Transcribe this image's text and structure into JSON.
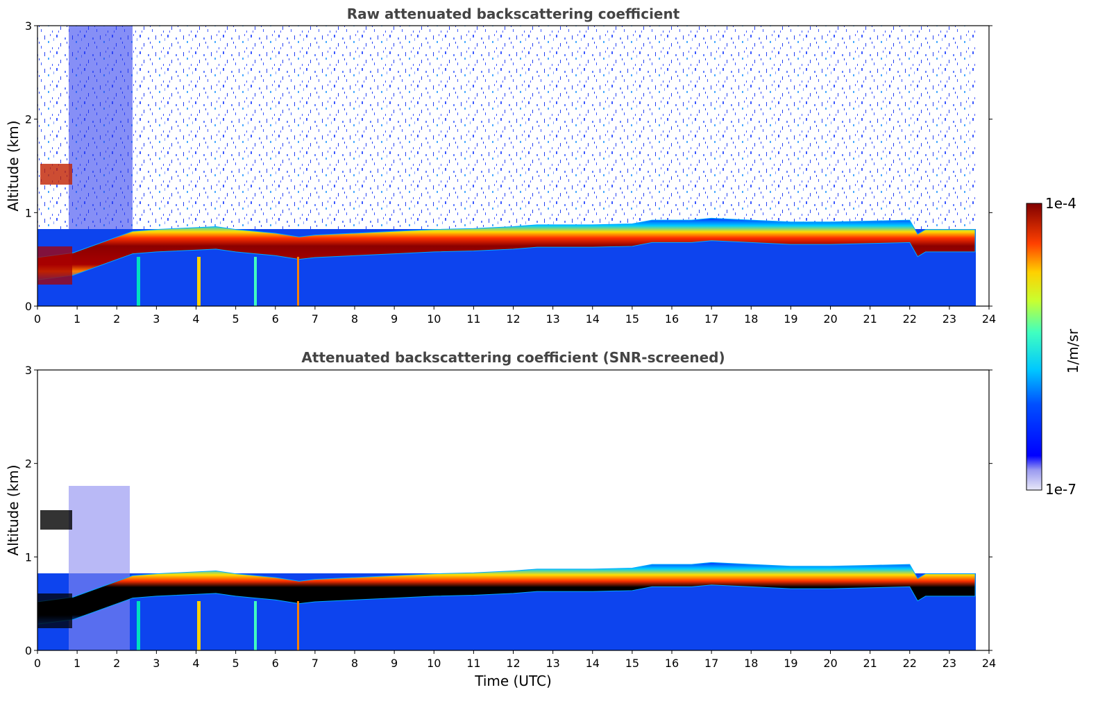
{
  "chart_data": [
    {
      "type": "heatmap",
      "title": "Raw attenuated backscattering coefficient",
      "xlabel": "",
      "ylabel": "Altitude (km)",
      "xlim": [
        0,
        24
      ],
      "ylim": [
        0,
        3
      ],
      "x_ticks": [
        "0",
        "1",
        "2",
        "3",
        "4",
        "5",
        "6",
        "7",
        "8",
        "9",
        "10",
        "11",
        "12",
        "13",
        "14",
        "15",
        "16",
        "17",
        "18",
        "19",
        "20",
        "21",
        "22",
        "23",
        "24"
      ],
      "y_ticks": [
        "0",
        "1",
        "2",
        "3"
      ],
      "data_end_time": 23.65,
      "layer_profile": {
        "time": [
          0.0,
          0.9,
          2.4,
          3.0,
          4.0,
          4.5,
          5.0,
          5.5,
          6.0,
          6.6,
          7.0,
          8.0,
          9.0,
          10.0,
          11.0,
          12.0,
          12.6,
          13.0,
          14.0,
          15.0,
          15.5,
          16.0,
          16.5,
          17.0,
          18.0,
          19.0,
          20.0,
          21.0,
          22.0,
          22.2,
          22.4,
          23.0,
          23.65
        ],
        "altitude_km": [
          0.4,
          0.45,
          0.68,
          0.7,
          0.72,
          0.73,
          0.7,
          0.68,
          0.66,
          0.62,
          0.64,
          0.66,
          0.68,
          0.7,
          0.71,
          0.73,
          0.75,
          0.75,
          0.75,
          0.76,
          0.8,
          0.8,
          0.8,
          0.82,
          0.8,
          0.78,
          0.78,
          0.79,
          0.8,
          0.65,
          0.7,
          0.7,
          0.7
        ]
      },
      "noise_above_layer": true,
      "color_scale": "log",
      "vmin": "1e-7",
      "vmax": "1e-4"
    },
    {
      "type": "heatmap",
      "title": "Attenuated backscattering coefficient (SNR-screened)",
      "xlabel": "Time (UTC)",
      "ylabel": "Altitude (km)",
      "xlim": [
        0,
        24
      ],
      "ylim": [
        0,
        3
      ],
      "x_ticks": [
        "0",
        "1",
        "2",
        "3",
        "4",
        "5",
        "6",
        "7",
        "8",
        "9",
        "10",
        "11",
        "12",
        "13",
        "14",
        "15",
        "16",
        "17",
        "18",
        "19",
        "20",
        "21",
        "22",
        "23",
        "24"
      ],
      "y_ticks": [
        "0",
        "1",
        "2",
        "3"
      ],
      "data_end_time": 23.65,
      "noise_above_layer": false,
      "saturated_core_color": "#000000",
      "color_scale": "log",
      "vmin": "1e-7",
      "vmax": "1e-4"
    }
  ],
  "colorbar": {
    "label": "1/m/sr",
    "top_label": "1e-4",
    "bottom_label": "1e-7",
    "colormap": "jet"
  }
}
